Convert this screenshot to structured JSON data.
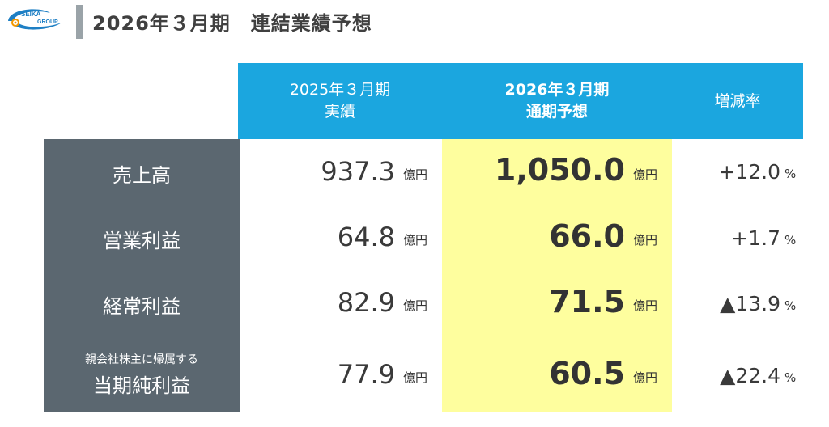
{
  "logo": {
    "line1": "SEIKA",
    "line2": "GROUP"
  },
  "title": "2026年３月期　連結業績予想",
  "columns": {
    "prev": {
      "line1": "2025年３月期",
      "line2": "実績"
    },
    "forecast": {
      "line1": "2026年３月期",
      "line2": "通期予想"
    },
    "change": "増減率"
  },
  "unit": "億円",
  "percent": "%",
  "rows": [
    {
      "label": "売上高",
      "prev": "937.3",
      "forecast": "1,050.0",
      "change": "+12.0"
    },
    {
      "label": "営業利益",
      "prev": "64.8",
      "forecast": "66.0",
      "change": "+1.7"
    },
    {
      "label": "経常利益",
      "prev": "82.9",
      "forecast": "71.5",
      "change": "▲13.9"
    },
    {
      "label_sub": "親会社株主に帰属する",
      "label": "当期純利益",
      "prev": "77.9",
      "forecast": "60.5",
      "change": "▲22.4"
    }
  ],
  "colors": {
    "header_blue": "#1ba6df",
    "label_gray": "#5b6770",
    "highlight_yellow": "#fefe9e",
    "title_bar": "#9aa3a8",
    "logo_blue": "#1e7fc4",
    "logo_orange": "#f39800"
  }
}
